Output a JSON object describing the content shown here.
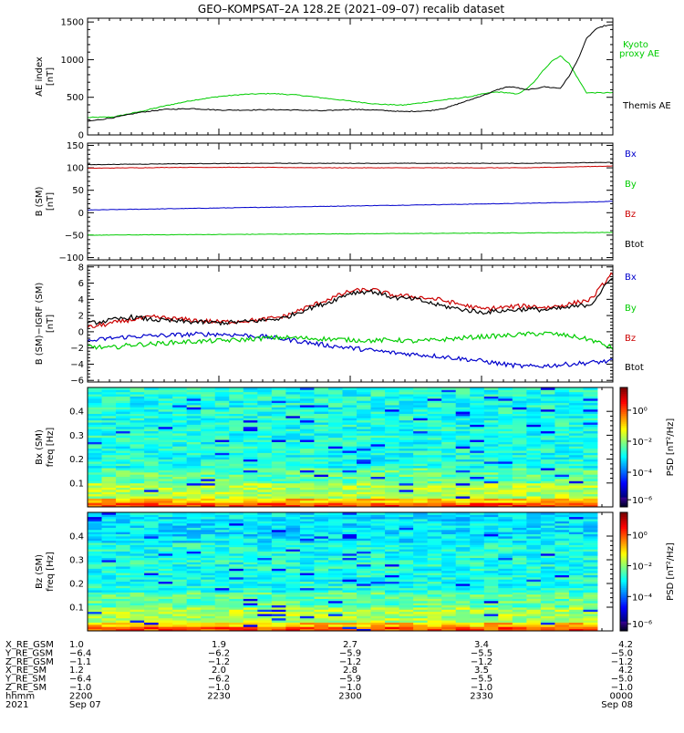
{
  "title": "GEO–KOMPSAT–2A 128.2E (2021–09–07) recalib dataset",
  "chart_data": [
    {
      "type": "line",
      "panel": "ae",
      "ylabel_line1": "AE index",
      "ylabel_line2": "[nT]",
      "ylim": [
        0,
        1550
      ],
      "yticks": [
        0,
        500,
        1000,
        1500
      ],
      "ytick_labels": [
        "0",
        "500",
        "1000",
        "1500"
      ],
      "legend": [
        {
          "text": "Kyoto",
          "color": "#00cc00"
        },
        {
          "text": "proxy AE",
          "color": "#00cc00"
        },
        {
          "text": "Themis AE",
          "color": "#000000"
        }
      ],
      "x_hours": [
        0,
        0.3,
        0.6,
        0.9,
        1.2,
        1.5,
        1.8,
        2.1,
        2.4,
        2.7,
        3.0,
        3.3,
        3.6,
        3.9,
        4.1,
        4.25,
        4.38,
        4.5,
        4.6,
        4.68,
        4.8,
        4.9,
        5.0,
        5.1,
        5.2,
        5.3,
        5.4,
        5.5,
        5.6,
        5.7,
        5.8,
        5.9,
        6.0
      ],
      "series": [
        {
          "name": "Kyoto proxy AE",
          "color": "#00cc00",
          "values": [
            230,
            240,
            310,
            390,
            460,
            510,
            540,
            550,
            530,
            490,
            450,
            410,
            395,
            440,
            470,
            490,
            510,
            540,
            560,
            570,
            560,
            540,
            600,
            700,
            850,
            980,
            1050,
            950,
            750,
            560,
            560,
            560,
            560
          ]
        },
        {
          "name": "Themis AE",
          "color": "#000000",
          "values": [
            180,
            230,
            300,
            340,
            350,
            330,
            330,
            335,
            330,
            320,
            340,
            330,
            310,
            320,
            360,
            420,
            470,
            520,
            560,
            600,
            640,
            630,
            600,
            610,
            640,
            630,
            620,
            780,
            1000,
            1280,
            1400,
            1450,
            1460
          ]
        }
      ]
    },
    {
      "type": "line",
      "panel": "b",
      "ylabel_line1": "B (SM)",
      "ylabel_line2": "[nT]",
      "ylim": [
        -105,
        155
      ],
      "yticks": [
        -100,
        -50,
        0,
        50,
        100,
        150
      ],
      "ytick_labels": [
        "−100",
        "−50",
        "0",
        "50",
        "100",
        "150"
      ],
      "legend": [
        {
          "text": "Bx",
          "color": "#0000cc"
        },
        {
          "text": "By",
          "color": "#00cc00"
        },
        {
          "text": "Bz",
          "color": "#cc0000"
        },
        {
          "text": "Btot",
          "color": "#000000"
        }
      ],
      "x_hours": [
        0,
        1,
        2,
        3,
        4,
        5,
        6
      ],
      "series": [
        {
          "name": "Bx",
          "color": "#0000cc",
          "values": [
            6,
            9,
            12,
            15,
            18,
            21,
            25
          ]
        },
        {
          "name": "By",
          "color": "#00cc00",
          "values": [
            -50,
            -49,
            -48,
            -47,
            -46,
            -45,
            -44
          ]
        },
        {
          "name": "Bz",
          "color": "#cc0000",
          "values": [
            99,
            101,
            101,
            100,
            100,
            100,
            104
          ]
        },
        {
          "name": "Btot",
          "color": "#000000",
          "values": [
            107,
            109,
            110,
            110,
            110,
            110,
            112
          ]
        }
      ]
    },
    {
      "type": "line",
      "panel": "db",
      "ylabel_line1": "B (SM)−IGRF (SM)",
      "ylabel_line2": "[nT]",
      "ylim": [
        -6.2,
        8.2
      ],
      "yticks": [
        -6,
        -4,
        -2,
        0,
        2,
        4,
        6,
        8
      ],
      "ytick_labels": [
        "−6",
        "−4",
        "−2",
        "0",
        "2",
        "4",
        "6",
        "8"
      ],
      "legend": [
        {
          "text": "Bx",
          "color": "#0000cc"
        },
        {
          "text": "By",
          "color": "#00cc00"
        },
        {
          "text": "Bz",
          "color": "#cc0000"
        },
        {
          "text": "Btot",
          "color": "#000000"
        }
      ],
      "x_hours": [
        0,
        0.25,
        0.5,
        0.75,
        1.0,
        1.25,
        1.5,
        1.75,
        2.0,
        2.25,
        2.5,
        2.75,
        3.0,
        3.25,
        3.5,
        3.75,
        4.0,
        4.25,
        4.5,
        4.75,
        5.0,
        5.25,
        5.5,
        5.75,
        6.0
      ],
      "series": [
        {
          "name": "Bx",
          "color": "#0000cc",
          "values": [
            -1.2,
            -0.8,
            -0.6,
            -0.5,
            -0.4,
            -0.3,
            -0.3,
            -0.4,
            -0.6,
            -0.9,
            -1.3,
            -1.7,
            -2.0,
            -2.3,
            -2.6,
            -2.8,
            -3.0,
            -3.3,
            -3.6,
            -4.0,
            -4.3,
            -4.2,
            -4.0,
            -3.8,
            -3.6
          ]
        },
        {
          "name": "By",
          "color": "#00cc00",
          "values": [
            -1.8,
            -2.0,
            -1.6,
            -1.5,
            -1.3,
            -1.2,
            -1.1,
            -1.0,
            -0.8,
            -0.7,
            -0.8,
            -0.9,
            -1.0,
            -1.1,
            -1.0,
            -1.2,
            -1.0,
            -0.8,
            -0.6,
            -0.5,
            -0.3,
            -0.2,
            -0.5,
            -1.0,
            -2.0
          ]
        },
        {
          "name": "Bz",
          "color": "#cc0000",
          "values": [
            0.5,
            1.0,
            1.5,
            1.8,
            1.6,
            1.4,
            1.2,
            1.3,
            1.5,
            1.9,
            3.0,
            4.0,
            5.0,
            5.2,
            4.5,
            4.3,
            4.0,
            3.4,
            2.8,
            3.0,
            3.2,
            3.0,
            3.4,
            4.0,
            7.3
          ]
        },
        {
          "name": "Btot",
          "color": "#000000",
          "values": [
            1.0,
            1.4,
            1.8,
            1.5,
            1.3,
            1.2,
            1.1,
            1.2,
            1.4,
            1.7,
            2.8,
            3.6,
            4.8,
            5.0,
            4.2,
            4.0,
            3.3,
            2.8,
            2.4,
            2.6,
            2.8,
            2.7,
            3.0,
            3.4,
            6.8
          ]
        }
      ]
    },
    {
      "type": "heatmap",
      "panel": "spec_bx",
      "ylabel_line1": "Bx (SM)",
      "ylabel_line2": "freq [Hz]",
      "ylim": [
        0,
        0.5
      ],
      "yticks": [
        0.1,
        0.2,
        0.3,
        0.4
      ],
      "ytick_labels": [
        "0.1",
        "0.2",
        "0.3",
        "0.4"
      ],
      "colorbar_label": "PSD [nT²/Hz]",
      "colorbar_ticks": [
        "10⁰",
        "10⁻²",
        "10⁻⁴",
        "10⁻⁶"
      ]
    },
    {
      "type": "heatmap",
      "panel": "spec_bz",
      "ylabel_line1": "Bz (SM)",
      "ylabel_line2": "freq [Hz]",
      "ylim": [
        0,
        0.5
      ],
      "yticks": [
        0.1,
        0.2,
        0.3,
        0.4
      ],
      "ytick_labels": [
        "0.1",
        "0.2",
        "0.3",
        "0.4"
      ],
      "colorbar_label": "PSD [nT²/Hz]",
      "colorbar_ticks": [
        "10⁰",
        "10⁻²",
        "10⁻⁴",
        "10⁻⁶"
      ]
    }
  ],
  "xaxis": {
    "row_labels": [
      "X_RE_GSM",
      "Y_RE_GSM",
      "Z_RE_GSM",
      "X_RE_SM",
      "Y_RE_SM",
      "Z_RE_SM",
      "hhmm",
      "2021"
    ],
    "columns": [
      {
        "values": [
          "1.0",
          "−6.4",
          "−1.1",
          "1.2",
          "−6.4",
          "−1.0",
          "2200",
          "Sep 07"
        ]
      },
      {
        "values": [
          "1.9",
          "−6.2",
          "−1.2",
          "2.0",
          "−6.2",
          "−1.0",
          "2230",
          ""
        ]
      },
      {
        "values": [
          "2.7",
          "−5.9",
          "−1.2",
          "2.8",
          "−5.9",
          "−1.0",
          "2300",
          ""
        ]
      },
      {
        "values": [
          "3.4",
          "−5.5",
          "−1.2",
          "3.5",
          "−5.5",
          "−1.0",
          "2330",
          ""
        ]
      },
      {
        "values": [
          "4.2",
          "−5.0",
          "−1.2",
          "4.2",
          "−5.0",
          "−1.0",
          "0000",
          "Sep 08"
        ]
      }
    ]
  }
}
